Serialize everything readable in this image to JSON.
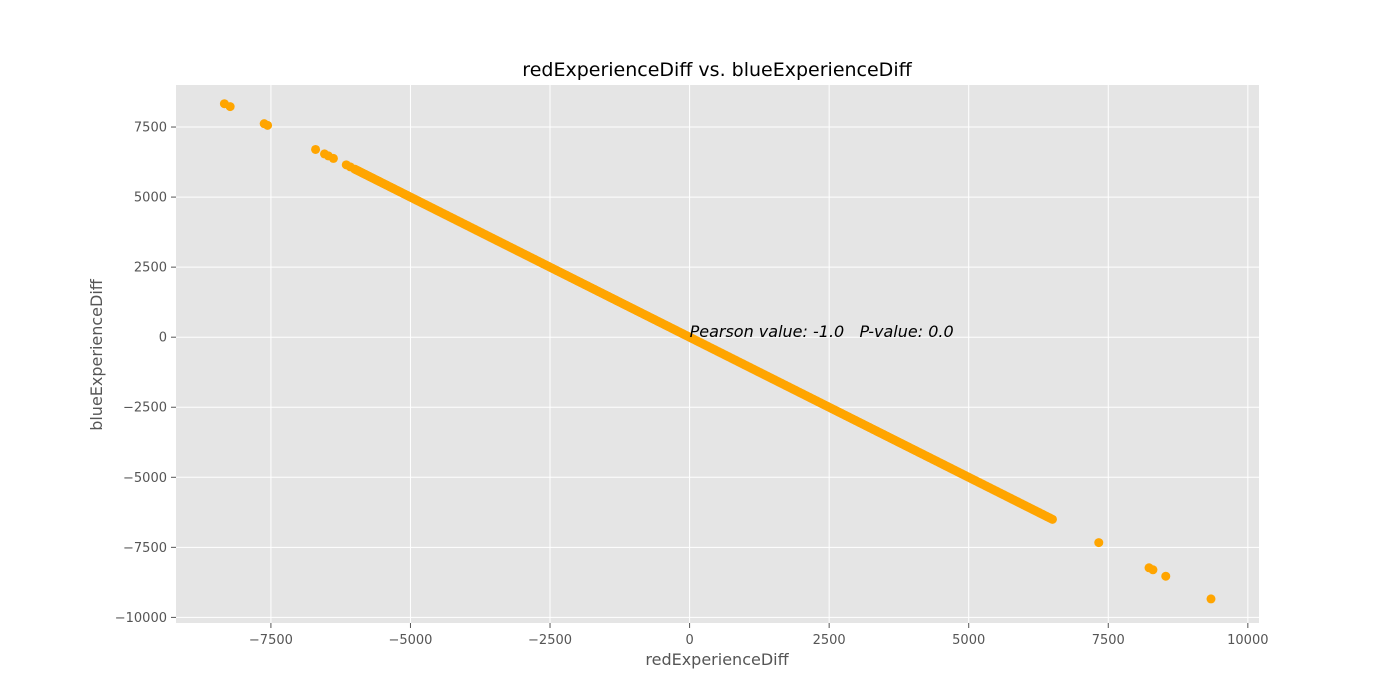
{
  "chart_data": {
    "type": "scatter",
    "title": "redExperienceDiff vs. blueExperienceDiff",
    "xlabel": "redExperienceDiff",
    "ylabel": "blueExperienceDiff",
    "xlim": [
      -9200,
      10200
    ],
    "ylim": [
      -10200,
      9000
    ],
    "xticks": [
      -7500,
      -5000,
      -2500,
      0,
      2500,
      5000,
      7500,
      10000
    ],
    "xtick_labels": [
      "−7500",
      "−5000",
      "−2500",
      "0",
      "2500",
      "5000",
      "7500",
      "10000"
    ],
    "yticks": [
      -10000,
      -7500,
      -5000,
      -2500,
      0,
      2500,
      5000,
      7500
    ],
    "ytick_labels": [
      "−10000",
      "−7500",
      "−5000",
      "−2500",
      "0",
      "2500",
      "5000",
      "7500"
    ],
    "grid": true,
    "marker_color": "#FFA500",
    "background_color": "#E5E5E5",
    "annotation": {
      "text": "Pearson value: -1.0   P-value: 0.0",
      "x": 0,
      "y": 0
    },
    "series": [
      {
        "points": [
          [
            -8333,
            8333
          ],
          [
            -8230,
            8230
          ],
          [
            -7620,
            7620
          ],
          [
            -7560,
            7560
          ],
          [
            -6700,
            6700
          ],
          [
            -6540,
            6540
          ],
          [
            -6470,
            6470
          ],
          [
            -6380,
            6380
          ],
          [
            -6150,
            6150
          ],
          [
            -6080,
            6080
          ],
          [
            7330,
            -7330
          ],
          [
            8230,
            -8230
          ],
          [
            8300,
            -8300
          ],
          [
            8530,
            -8530
          ],
          [
            9340,
            -9340
          ]
        ],
        "dense_range": [
          -6000,
          6500
        ]
      }
    ]
  }
}
